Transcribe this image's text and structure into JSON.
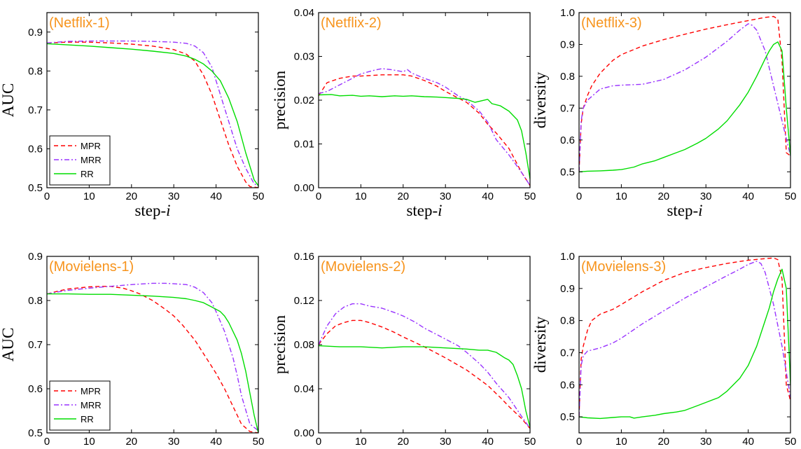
{
  "chart_data": [
    {
      "type": "line",
      "title": "(Netflix-1)",
      "xlabel": "step-i",
      "ylabel": "AUC",
      "xlim": [
        0,
        50
      ],
      "ylim": [
        0.5,
        0.95
      ],
      "xticks": [
        "0",
        "10",
        "20",
        "30",
        "40",
        "50"
      ],
      "yticks": [
        "0.5",
        "0.6",
        "0.7",
        "0.8",
        "0.9"
      ],
      "legend": "lower-left",
      "series": [
        {
          "name": "MPR",
          "color": "#ff0000",
          "dash": "dash",
          "x": [
            0,
            5,
            10,
            15,
            20,
            25,
            30,
            33,
            35,
            37,
            39,
            41,
            43,
            45,
            47,
            48,
            50
          ],
          "y": [
            0.872,
            0.874,
            0.874,
            0.872,
            0.869,
            0.864,
            0.855,
            0.843,
            0.825,
            0.79,
            0.74,
            0.675,
            0.61,
            0.555,
            0.515,
            0.503,
            0.5
          ]
        },
        {
          "name": "MRR",
          "color": "#9933ff",
          "dash": "dashdot",
          "x": [
            0,
            5,
            10,
            15,
            20,
            25,
            30,
            33,
            35,
            37,
            39,
            41,
            43,
            45,
            47,
            49,
            50
          ],
          "y": [
            0.872,
            0.876,
            0.877,
            0.877,
            0.877,
            0.876,
            0.874,
            0.871,
            0.864,
            0.847,
            0.81,
            0.74,
            0.67,
            0.6,
            0.55,
            0.51,
            0.505
          ]
        },
        {
          "name": "RR",
          "color": "#00dd00",
          "dash": "solid",
          "x": [
            0,
            5,
            10,
            15,
            20,
            25,
            30,
            33,
            35,
            37,
            39,
            41,
            43,
            45,
            47,
            49,
            50
          ],
          "y": [
            0.87,
            0.867,
            0.864,
            0.86,
            0.856,
            0.851,
            0.845,
            0.838,
            0.83,
            0.818,
            0.8,
            0.775,
            0.73,
            0.67,
            0.59,
            0.52,
            0.505
          ]
        }
      ]
    },
    {
      "type": "line",
      "title": "(Netflix-2)",
      "xlabel": "step-i",
      "ylabel": "precision",
      "xlim": [
        0,
        50
      ],
      "ylim": [
        0,
        0.04
      ],
      "xticks": [
        "0",
        "10",
        "20",
        "30",
        "40",
        "50"
      ],
      "yticks": [
        "0.00",
        "0.01",
        "0.02",
        "0.03",
        "0.04"
      ],
      "series": [
        {
          "name": "MPR",
          "color": "#ff0000",
          "dash": "dash",
          "x": [
            0,
            2,
            5,
            8,
            10,
            15,
            20,
            22,
            25,
            28,
            30,
            33,
            35,
            38,
            40,
            42,
            45,
            48,
            50
          ],
          "y": [
            0.021,
            0.024,
            0.025,
            0.0255,
            0.0255,
            0.0258,
            0.0258,
            0.0255,
            0.0245,
            0.0232,
            0.022,
            0.0205,
            0.0195,
            0.017,
            0.0145,
            0.0125,
            0.009,
            0.0035,
            0.0005
          ]
        },
        {
          "name": "MRR",
          "color": "#9933ff",
          "dash": "dashdot",
          "x": [
            0,
            2,
            5,
            8,
            10,
            13,
            15,
            17,
            20,
            21,
            22,
            25,
            28,
            30,
            33,
            35,
            38,
            40,
            42,
            45,
            48,
            50
          ],
          "y": [
            0.0215,
            0.022,
            0.0235,
            0.025,
            0.026,
            0.0268,
            0.0272,
            0.027,
            0.0265,
            0.027,
            0.0262,
            0.025,
            0.024,
            0.023,
            0.021,
            0.02,
            0.0175,
            0.015,
            0.011,
            0.0075,
            0.0035,
            0.0005
          ]
        },
        {
          "name": "RR",
          "color": "#00dd00",
          "dash": "solid",
          "x": [
            0,
            3,
            5,
            8,
            10,
            12,
            15,
            18,
            20,
            22,
            25,
            28,
            30,
            33,
            35,
            37,
            40,
            41,
            43,
            45,
            47,
            48,
            49,
            50
          ],
          "y": [
            0.0212,
            0.0213,
            0.021,
            0.0211,
            0.0209,
            0.021,
            0.0208,
            0.021,
            0.0209,
            0.021,
            0.0208,
            0.0207,
            0.0206,
            0.0204,
            0.0202,
            0.0195,
            0.0202,
            0.0192,
            0.0187,
            0.0175,
            0.0155,
            0.013,
            0.008,
            0.002
          ]
        }
      ]
    },
    {
      "type": "line",
      "title": "(Netflix-3)",
      "xlabel": "step-i",
      "ylabel": "diversity",
      "xlim": [
        0,
        50
      ],
      "ylim": [
        0.45,
        1.0
      ],
      "xticks": [
        "0",
        "10",
        "20",
        "30",
        "40",
        "50"
      ],
      "yticks": [
        "0.5",
        "0.6",
        "0.7",
        "0.8",
        "0.9",
        "1.0"
      ],
      "series": [
        {
          "name": "MPR",
          "color": "#ff0000",
          "dash": "dash",
          "x": [
            0,
            0.5,
            1,
            2,
            3,
            5,
            8,
            10,
            15,
            20,
            25,
            30,
            35,
            40,
            44,
            46,
            47,
            48,
            49,
            50
          ],
          "y": [
            0.5,
            0.65,
            0.7,
            0.74,
            0.77,
            0.81,
            0.85,
            0.868,
            0.895,
            0.915,
            0.932,
            0.948,
            0.962,
            0.975,
            0.985,
            0.988,
            0.98,
            0.85,
            0.56,
            0.55
          ]
        },
        {
          "name": "MRR",
          "color": "#9933ff",
          "dash": "dashdot",
          "x": [
            0,
            0.5,
            1,
            2,
            5,
            8,
            10,
            15,
            20,
            25,
            30,
            35,
            38,
            40,
            41,
            42,
            44,
            46,
            48,
            50
          ],
          "y": [
            0.5,
            0.66,
            0.7,
            0.725,
            0.76,
            0.77,
            0.772,
            0.775,
            0.79,
            0.82,
            0.86,
            0.91,
            0.945,
            0.965,
            0.96,
            0.945,
            0.88,
            0.77,
            0.66,
            0.55
          ]
        },
        {
          "name": "RR",
          "color": "#00dd00",
          "dash": "solid",
          "x": [
            0,
            2,
            5,
            8,
            10,
            13,
            15,
            18,
            20,
            23,
            25,
            28,
            30,
            33,
            35,
            38,
            40,
            42,
            44,
            45,
            46,
            47,
            48,
            49,
            50
          ],
          "y": [
            0.5,
            0.502,
            0.503,
            0.505,
            0.507,
            0.515,
            0.525,
            0.535,
            0.545,
            0.56,
            0.57,
            0.59,
            0.605,
            0.635,
            0.66,
            0.71,
            0.75,
            0.8,
            0.855,
            0.88,
            0.9,
            0.908,
            0.88,
            0.7,
            0.55
          ]
        }
      ]
    },
    {
      "type": "line",
      "title": "(Movielens-1)",
      "xlabel": "step-i",
      "ylabel": "AUC",
      "xlim": [
        0,
        50
      ],
      "ylim": [
        0.5,
        0.9
      ],
      "xticks": [
        "0",
        "10",
        "20",
        "30",
        "40",
        "50"
      ],
      "yticks": [
        "0.5",
        "0.6",
        "0.7",
        "0.8",
        "0.9"
      ],
      "legend": "lower-left",
      "series": [
        {
          "name": "MPR",
          "color": "#ff0000",
          "dash": "dash",
          "x": [
            0,
            3,
            5,
            8,
            10,
            13,
            15,
            18,
            20,
            22,
            25,
            28,
            30,
            32,
            35,
            38,
            40,
            42,
            44,
            46,
            48,
            50
          ],
          "y": [
            0.815,
            0.822,
            0.826,
            0.829,
            0.831,
            0.832,
            0.832,
            0.828,
            0.822,
            0.815,
            0.8,
            0.78,
            0.765,
            0.745,
            0.71,
            0.665,
            0.635,
            0.6,
            0.56,
            0.52,
            0.503,
            0.5
          ]
        },
        {
          "name": "MRR",
          "color": "#9933ff",
          "dash": "dashdot",
          "x": [
            0,
            3,
            5,
            8,
            10,
            15,
            20,
            25,
            28,
            30,
            33,
            35,
            37,
            39,
            40,
            42,
            44,
            45,
            46,
            48,
            50
          ],
          "y": [
            0.815,
            0.82,
            0.823,
            0.826,
            0.828,
            0.832,
            0.836,
            0.839,
            0.839,
            0.838,
            0.836,
            0.83,
            0.818,
            0.795,
            0.775,
            0.73,
            0.67,
            0.63,
            0.585,
            0.52,
            0.505
          ]
        },
        {
          "name": "RR",
          "color": "#00dd00",
          "dash": "solid",
          "x": [
            0,
            5,
            10,
            15,
            20,
            25,
            30,
            33,
            35,
            37,
            39,
            41,
            42,
            43,
            45,
            46,
            47,
            48,
            49,
            50
          ],
          "y": [
            0.815,
            0.815,
            0.814,
            0.814,
            0.812,
            0.81,
            0.807,
            0.804,
            0.8,
            0.795,
            0.785,
            0.775,
            0.765,
            0.75,
            0.71,
            0.68,
            0.64,
            0.59,
            0.54,
            0.5
          ]
        }
      ]
    },
    {
      "type": "line",
      "title": "(Movielens-2)",
      "xlabel": "step-i",
      "ylabel": "precision",
      "xlim": [
        0,
        50
      ],
      "ylim": [
        0,
        0.16
      ],
      "xticks": [
        "0",
        "10",
        "20",
        "30",
        "40",
        "50"
      ],
      "yticks": [
        "0.00",
        "0.04",
        "0.08",
        "0.12",
        "0.16"
      ],
      "series": [
        {
          "name": "MPR",
          "color": "#ff0000",
          "dash": "dash",
          "x": [
            0,
            2,
            4,
            6,
            8,
            10,
            12,
            15,
            18,
            20,
            25,
            30,
            35,
            40,
            43,
            45,
            48,
            50
          ],
          "y": [
            0.08,
            0.09,
            0.097,
            0.1,
            0.102,
            0.102,
            0.1,
            0.096,
            0.091,
            0.087,
            0.078,
            0.068,
            0.057,
            0.043,
            0.032,
            0.024,
            0.013,
            0.004
          ]
        },
        {
          "name": "MRR",
          "color": "#9933ff",
          "dash": "dashdot",
          "x": [
            0,
            2,
            4,
            6,
            8,
            10,
            12,
            15,
            18,
            20,
            23,
            25,
            28,
            30,
            33,
            35,
            38,
            40,
            42,
            45,
            48,
            50
          ],
          "y": [
            0.08,
            0.097,
            0.108,
            0.114,
            0.117,
            0.117,
            0.115,
            0.113,
            0.109,
            0.106,
            0.1,
            0.095,
            0.089,
            0.085,
            0.079,
            0.073,
            0.063,
            0.055,
            0.045,
            0.032,
            0.015,
            0.004
          ]
        },
        {
          "name": "RR",
          "color": "#00dd00",
          "dash": "solid",
          "x": [
            0,
            5,
            10,
            15,
            20,
            25,
            30,
            35,
            38,
            40,
            42,
            44,
            45,
            46,
            47,
            48,
            49,
            50
          ],
          "y": [
            0.079,
            0.078,
            0.078,
            0.077,
            0.078,
            0.078,
            0.077,
            0.076,
            0.075,
            0.075,
            0.073,
            0.068,
            0.066,
            0.062,
            0.052,
            0.04,
            0.02,
            0.005
          ]
        }
      ]
    },
    {
      "type": "line",
      "title": "(Movielens-3)",
      "xlabel": "step-i",
      "ylabel": "diversity",
      "xlim": [
        0,
        50
      ],
      "ylim": [
        0.45,
        1.0
      ],
      "xticks": [
        "0",
        "10",
        "20",
        "30",
        "40",
        "50"
      ],
      "yticks": [
        "0.5",
        "0.6",
        "0.7",
        "0.8",
        "0.9",
        "1.0"
      ],
      "series": [
        {
          "name": "MPR",
          "color": "#ff0000",
          "dash": "dash",
          "x": [
            0,
            0.5,
            1,
            2,
            3,
            5,
            8,
            10,
            15,
            20,
            25,
            30,
            35,
            40,
            44,
            46,
            47,
            48,
            49,
            50
          ],
          "y": [
            0.5,
            0.68,
            0.72,
            0.77,
            0.8,
            0.82,
            0.835,
            0.85,
            0.89,
            0.925,
            0.95,
            0.965,
            0.978,
            0.988,
            0.993,
            0.995,
            0.99,
            0.93,
            0.6,
            0.55
          ]
        },
        {
          "name": "MRR",
          "color": "#9933ff",
          "dash": "dashdot",
          "x": [
            0,
            0.5,
            1,
            2,
            5,
            8,
            10,
            15,
            20,
            25,
            30,
            35,
            38,
            40,
            42,
            43,
            44,
            46,
            48,
            50
          ],
          "y": [
            0.5,
            0.66,
            0.69,
            0.705,
            0.715,
            0.73,
            0.745,
            0.79,
            0.83,
            0.87,
            0.905,
            0.94,
            0.96,
            0.975,
            0.985,
            0.978,
            0.95,
            0.85,
            0.72,
            0.56
          ]
        },
        {
          "name": "RR",
          "color": "#00dd00",
          "dash": "solid",
          "x": [
            0,
            2,
            5,
            8,
            10,
            12,
            13,
            15,
            18,
            20,
            23,
            25,
            28,
            30,
            33,
            35,
            38,
            40,
            42,
            44,
            45,
            46,
            47,
            48,
            49,
            50
          ],
          "y": [
            0.5,
            0.497,
            0.495,
            0.498,
            0.5,
            0.5,
            0.496,
            0.5,
            0.505,
            0.51,
            0.515,
            0.52,
            0.535,
            0.545,
            0.56,
            0.58,
            0.62,
            0.66,
            0.72,
            0.8,
            0.84,
            0.89,
            0.93,
            0.96,
            0.9,
            0.6
          ]
        }
      ]
    }
  ]
}
